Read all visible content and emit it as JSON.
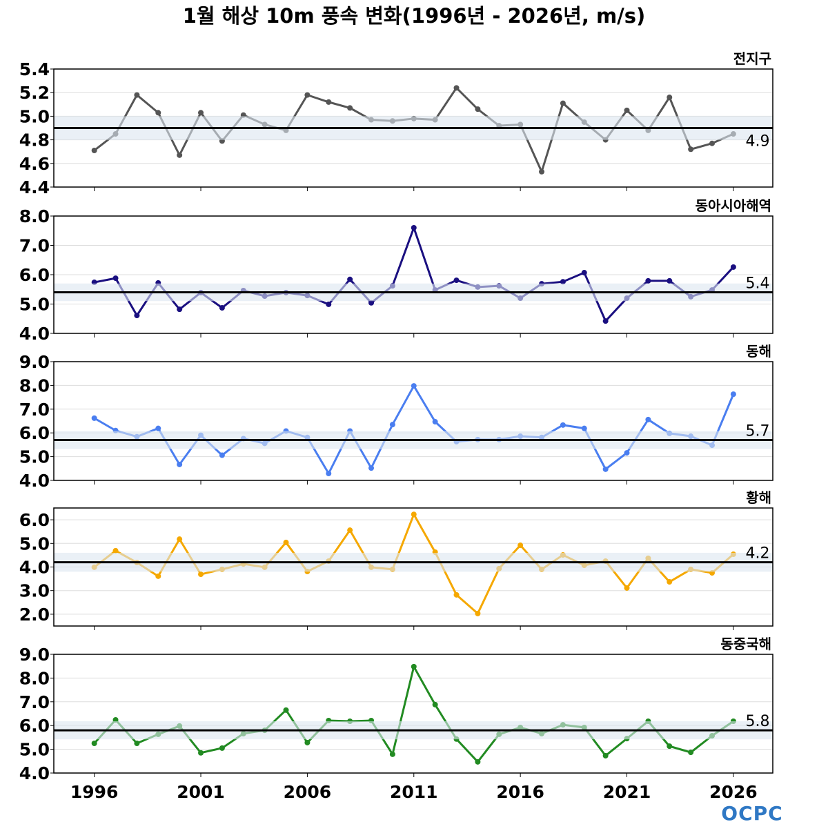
{
  "title": "1월 해상 10m 풍속 변화(1996년 - 2026년, m/s)",
  "logo_text": "OCPC",
  "chart_data": [
    {
      "type": "line",
      "panel_label": "전지구",
      "color": "#555555",
      "ylim": [
        4.4,
        5.4
      ],
      "yticks": [
        "4.4",
        "4.6",
        "4.8",
        "5.0",
        "5.2",
        "5.4"
      ],
      "mean": 4.9,
      "mean_label": "4.9",
      "band": [
        4.8,
        5.0
      ],
      "x": [
        1996,
        1997,
        1998,
        1999,
        2000,
        2001,
        2002,
        2003,
        2004,
        2005,
        2006,
        2007,
        2008,
        2009,
        2010,
        2011,
        2012,
        2013,
        2014,
        2015,
        2016,
        2017,
        2018,
        2019,
        2020,
        2021,
        2022,
        2023,
        2024,
        2025,
        2026
      ],
      "values": [
        4.71,
        4.85,
        5.18,
        5.03,
        4.67,
        5.03,
        4.79,
        5.01,
        4.93,
        4.88,
        5.18,
        5.12,
        5.07,
        4.97,
        4.96,
        4.98,
        4.97,
        5.24,
        5.06,
        4.92,
        4.93,
        4.53,
        5.11,
        4.95,
        4.8,
        5.05,
        4.88,
        5.16,
        4.72,
        4.77,
        4.85
      ]
    },
    {
      "type": "line",
      "panel_label": "동아시아해역",
      "color": "#1a0f80",
      "ylim": [
        4,
        8
      ],
      "yticks": [
        "4.0",
        "5.0",
        "6.0",
        "7.0",
        "8.0"
      ],
      "mean": 5.4,
      "mean_label": "5.4",
      "band": [
        5.1,
        5.7
      ],
      "x": [
        1996,
        1997,
        1998,
        1999,
        2000,
        2001,
        2002,
        2003,
        2004,
        2005,
        2006,
        2007,
        2008,
        2009,
        2010,
        2011,
        2012,
        2013,
        2014,
        2015,
        2016,
        2017,
        2018,
        2019,
        2020,
        2021,
        2022,
        2023,
        2024,
        2025,
        2026
      ],
      "values": [
        5.74,
        5.88,
        4.61,
        5.72,
        4.82,
        5.39,
        4.87,
        5.46,
        5.27,
        5.39,
        5.29,
        4.99,
        5.84,
        5.04,
        5.62,
        7.6,
        5.48,
        5.81,
        5.58,
        5.62,
        5.2,
        5.69,
        5.76,
        6.07,
        4.42,
        5.2,
        5.79,
        5.79,
        5.25,
        5.48,
        6.26
      ]
    },
    {
      "type": "line",
      "panel_label": "동해",
      "color": "#4a7ef0",
      "ylim": [
        4,
        9
      ],
      "yticks": [
        "4.0",
        "5.0",
        "6.0",
        "7.0",
        "8.0",
        "9.0"
      ],
      "mean": 5.7,
      "mean_label": "5.7",
      "band": [
        5.32,
        6.08
      ],
      "x": [
        1996,
        1997,
        1998,
        1999,
        2000,
        2001,
        2002,
        2003,
        2004,
        2005,
        2006,
        2007,
        2008,
        2009,
        2010,
        2011,
        2012,
        2013,
        2014,
        2015,
        2016,
        2017,
        2018,
        2019,
        2020,
        2021,
        2022,
        2023,
        2024,
        2025,
        2026
      ],
      "values": [
        6.62,
        6.1,
        5.84,
        6.19,
        4.67,
        5.9,
        5.06,
        5.76,
        5.56,
        6.08,
        5.81,
        4.29,
        6.08,
        4.52,
        6.35,
        7.98,
        6.47,
        5.63,
        5.72,
        5.72,
        5.86,
        5.81,
        6.33,
        6.19,
        4.47,
        5.16,
        6.56,
        5.98,
        5.86,
        5.48,
        7.63
      ]
    },
    {
      "type": "line",
      "panel_label": "황해",
      "color": "#f5a800",
      "ylim": [
        1.5,
        6.5
      ],
      "yticks": [
        "2.0",
        "3.0",
        "4.0",
        "5.0",
        "6.0"
      ],
      "mean": 4.2,
      "mean_label": "4.2",
      "band": [
        3.8,
        4.6
      ],
      "x": [
        1996,
        1997,
        1998,
        1999,
        2000,
        2001,
        2002,
        2003,
        2004,
        2005,
        2006,
        2007,
        2008,
        2009,
        2010,
        2011,
        2012,
        2013,
        2014,
        2015,
        2016,
        2017,
        2018,
        2019,
        2020,
        2021,
        2022,
        2023,
        2024,
        2025,
        2026
      ],
      "values": [
        3.99,
        4.69,
        4.19,
        3.61,
        5.18,
        3.69,
        3.9,
        4.13,
        3.99,
        5.04,
        3.81,
        4.25,
        5.56,
        3.99,
        3.9,
        6.23,
        4.63,
        2.82,
        2.03,
        3.93,
        4.92,
        3.9,
        4.51,
        4.07,
        4.25,
        3.11,
        4.37,
        3.37,
        3.9,
        3.75,
        4.54
      ]
    },
    {
      "type": "line",
      "panel_label": "동중국해",
      "color": "#228b22",
      "ylim": [
        4,
        9
      ],
      "yticks": [
        "4.0",
        "5.0",
        "6.0",
        "7.0",
        "8.0",
        "9.0"
      ],
      "mean": 5.8,
      "mean_label": "5.8",
      "band": [
        5.42,
        6.18
      ],
      "x": [
        1996,
        1997,
        1998,
        1999,
        2000,
        2001,
        2002,
        2003,
        2004,
        2005,
        2006,
        2007,
        2008,
        2009,
        2010,
        2011,
        2012,
        2013,
        2014,
        2015,
        2016,
        2017,
        2018,
        2019,
        2020,
        2021,
        2022,
        2023,
        2024,
        2025,
        2026
      ],
      "values": [
        5.25,
        6.24,
        5.25,
        5.63,
        5.98,
        4.85,
        5.05,
        5.66,
        5.8,
        6.65,
        5.28,
        6.21,
        6.18,
        6.21,
        4.79,
        8.48,
        6.88,
        5.43,
        4.47,
        5.63,
        5.92,
        5.66,
        6.03,
        5.92,
        4.73,
        5.45,
        6.18,
        5.13,
        4.87,
        5.57,
        6.18
      ]
    }
  ],
  "xaxis": {
    "xlim": [
      1994.1,
      2027.85
    ],
    "ticks": [
      "1996",
      "2001",
      "2006",
      "2011",
      "2016",
      "2021",
      "2026"
    ]
  },
  "band_color": "#dce6f0",
  "grid": true
}
